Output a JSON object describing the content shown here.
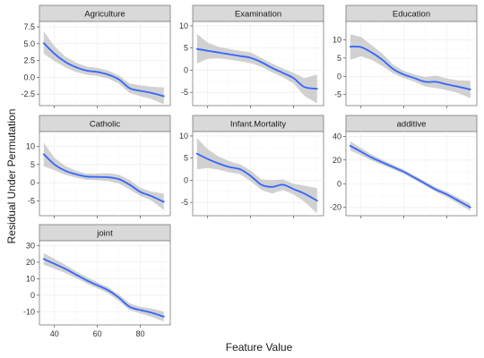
{
  "chart_data": {
    "type": "line",
    "xlabel": "Feature Value",
    "ylabel": "Residual Under Permutation",
    "grid": true,
    "x_ticks": [
      40,
      60,
      80
    ],
    "xlim": [
      33,
      94
    ],
    "panels": [
      {
        "title": "Agriculture",
        "y_ticks": [
          -2.5,
          0.0,
          2.5,
          5.0,
          7.5
        ],
        "y_tick_labels": [
          "-2.5",
          "0.0",
          "2.5",
          "5.0",
          "7.5"
        ],
        "ylim": [
          -4.2,
          8.3
        ],
        "x": [
          35,
          40,
          45,
          50,
          55,
          60,
          65,
          70,
          75,
          80,
          85,
          91
        ],
        "y": [
          5.1,
          3.5,
          2.3,
          1.5,
          1.0,
          0.8,
          0.4,
          -0.3,
          -1.6,
          -2.0,
          -2.3,
          -2.8
        ],
        "lower": [
          3.5,
          2.4,
          1.5,
          0.8,
          0.4,
          0.2,
          -0.2,
          -0.9,
          -2.3,
          -2.8,
          -3.2,
          -4.0
        ],
        "upper": [
          6.8,
          4.6,
          3.1,
          2.2,
          1.6,
          1.4,
          1.0,
          0.3,
          -0.9,
          -1.2,
          -1.4,
          -1.5
        ]
      },
      {
        "title": "Examination",
        "y_ticks": [
          -5,
          0,
          5,
          10
        ],
        "y_tick_labels": [
          "-5",
          "0",
          "5",
          "10"
        ],
        "ylim": [
          -8,
          11
        ],
        "x": [
          35,
          40,
          45,
          50,
          55,
          60,
          65,
          70,
          75,
          80,
          85,
          91
        ],
        "y": [
          4.8,
          4.4,
          4.0,
          3.6,
          3.2,
          2.8,
          1.8,
          0.5,
          -0.6,
          -1.8,
          -3.8,
          -4.2
        ],
        "lower": [
          1.5,
          2.6,
          2.7,
          2.4,
          2.0,
          1.6,
          0.8,
          -0.5,
          -1.6,
          -3.0,
          -5.8,
          -7.5
        ],
        "upper": [
          8.2,
          6.2,
          5.3,
          4.8,
          4.4,
          4.0,
          2.8,
          1.5,
          0.4,
          -0.6,
          -1.8,
          -1.0
        ]
      },
      {
        "title": "Education",
        "y_ticks": [
          -5,
          0,
          5,
          10
        ],
        "y_tick_labels": [
          "-5",
          "0",
          "5",
          "10"
        ],
        "ylim": [
          -8,
          15
        ],
        "x": [
          35,
          40,
          45,
          50,
          55,
          60,
          65,
          70,
          75,
          80,
          85,
          91
        ],
        "y": [
          8.1,
          8.0,
          6.5,
          4.5,
          2.0,
          0.5,
          -0.5,
          -1.5,
          -1.5,
          -2.2,
          -2.8,
          -3.6
        ],
        "lower": [
          4.5,
          5.5,
          4.5,
          2.8,
          0.8,
          -0.5,
          -1.5,
          -2.8,
          -3.2,
          -3.8,
          -4.5,
          -6.0
        ],
        "upper": [
          11.5,
          10.8,
          8.5,
          6.2,
          3.2,
          1.5,
          0.5,
          -0.2,
          0.2,
          -0.6,
          -1.1,
          -1.2
        ]
      },
      {
        "title": "Catholic",
        "y_ticks": [
          -5,
          0,
          5,
          10
        ],
        "y_tick_labels": [
          "-5",
          "0",
          "5",
          "10"
        ],
        "ylim": [
          -9,
          14
        ],
        "x": [
          35,
          40,
          45,
          50,
          55,
          60,
          65,
          70,
          75,
          80,
          85,
          91
        ],
        "y": [
          7.8,
          5.0,
          3.3,
          2.3,
          1.7,
          1.6,
          1.5,
          1.0,
          -0.5,
          -2.5,
          -3.6,
          -5.2
        ],
        "lower": [
          4.5,
          3.4,
          2.2,
          1.4,
          0.8,
          0.7,
          0.5,
          -0.2,
          -1.8,
          -3.6,
          -4.8,
          -7.4
        ],
        "upper": [
          11.0,
          6.8,
          4.6,
          3.3,
          2.5,
          2.5,
          2.6,
          2.2,
          0.8,
          -1.4,
          -2.4,
          -3.0
        ]
      },
      {
        "title": "Infant.Mortality",
        "y_ticks": [
          -5,
          0,
          5,
          10
        ],
        "y_tick_labels": [
          "-5",
          "0",
          "5",
          "10"
        ],
        "ylim": [
          -8,
          11
        ],
        "x": [
          35,
          40,
          45,
          50,
          55,
          60,
          65,
          70,
          75,
          80,
          85,
          91
        ],
        "y": [
          6.0,
          4.8,
          3.8,
          3.0,
          2.5,
          1.0,
          -1.0,
          -1.5,
          -1.0,
          -2.0,
          -3.0,
          -4.6
        ],
        "lower": [
          2.5,
          2.8,
          2.4,
          1.8,
          1.4,
          -0.2,
          -2.2,
          -3.0,
          -2.2,
          -3.2,
          -4.8,
          -7.5
        ],
        "upper": [
          9.5,
          7.0,
          5.4,
          4.3,
          3.6,
          2.2,
          0.2,
          0.0,
          0.2,
          -0.8,
          -1.2,
          -1.8
        ]
      },
      {
        "title": "additive",
        "y_ticks": [
          -20,
          0,
          20,
          40
        ],
        "y_tick_labels": [
          "-20",
          "0",
          "20",
          "40"
        ],
        "ylim": [
          -27,
          44
        ],
        "x": [
          35,
          40,
          45,
          50,
          55,
          60,
          65,
          70,
          75,
          80,
          85,
          91
        ],
        "y": [
          32,
          27,
          22,
          18,
          14,
          10,
          5,
          0,
          -5,
          -9,
          -14,
          -20
        ],
        "lower": [
          28,
          24,
          19.5,
          15.8,
          12,
          8.2,
          3.2,
          -1.8,
          -7,
          -11.2,
          -16.5,
          -23
        ],
        "upper": [
          36,
          30,
          24.5,
          20.2,
          16,
          11.8,
          6.8,
          1.8,
          -3,
          -6.8,
          -11.5,
          -17
        ]
      },
      {
        "title": "joint",
        "y_ticks": [
          -10,
          0,
          10,
          20,
          30
        ],
        "y_tick_labels": [
          "-10",
          "0",
          "10",
          "20",
          "30"
        ],
        "ylim": [
          -18,
          33
        ],
        "x": [
          35,
          40,
          45,
          50,
          55,
          60,
          65,
          70,
          75,
          80,
          85,
          91
        ],
        "y": [
          22,
          19,
          16,
          12.5,
          9,
          6,
          3,
          -1.5,
          -7,
          -9,
          -10.5,
          -13
        ],
        "lower": [
          18.5,
          16,
          13.5,
          10.5,
          7,
          4.2,
          1.2,
          -3.5,
          -9,
          -11,
          -13,
          -16
        ],
        "upper": [
          25.5,
          22,
          18.5,
          14.5,
          11,
          7.8,
          4.8,
          0.5,
          -5,
          -7,
          -8,
          -10
        ]
      }
    ]
  }
}
